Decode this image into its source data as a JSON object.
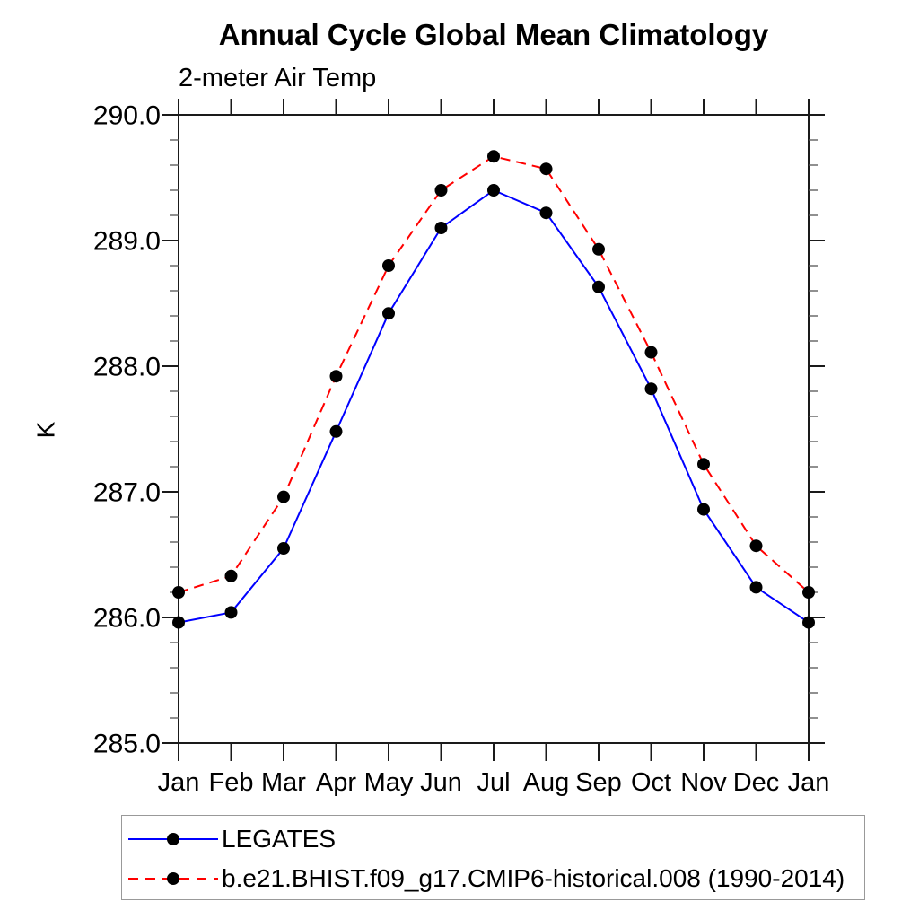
{
  "chart_data": {
    "type": "line",
    "title": "Annual Cycle Global Mean Climatology",
    "subtitle": "2-meter Air Temp",
    "ylabel": "K",
    "categories": [
      "Jan",
      "Feb",
      "Mar",
      "Apr",
      "May",
      "Jun",
      "Jul",
      "Aug",
      "Sep",
      "Oct",
      "Nov",
      "Dec",
      "Jan"
    ],
    "ylim": [
      285.0,
      290.0
    ],
    "y_major_ticks": [
      "285.0",
      "286.0",
      "287.0",
      "288.0",
      "289.0",
      "290.0"
    ],
    "y_minor_step": 0.2,
    "grid": false,
    "legend_position": "bottom-left-box",
    "axis_color": "#1a1a1a",
    "marker_color": "#000000",
    "series": [
      {
        "name": "LEGATES",
        "color": "#0000ff",
        "style": "solid",
        "marker": "circle",
        "values": [
          285.96,
          286.04,
          286.55,
          287.48,
          288.42,
          289.1,
          289.4,
          289.22,
          288.63,
          287.82,
          286.86,
          286.24,
          285.96
        ]
      },
      {
        "name": "b.e21.BHIST.f09_g17.CMIP6-historical.008 (1990-2014)",
        "color": "#ff0000",
        "style": "dashed",
        "marker": "circle",
        "values": [
          286.2,
          286.33,
          286.96,
          287.92,
          288.8,
          289.4,
          289.67,
          289.57,
          288.93,
          288.11,
          287.22,
          286.57,
          286.2
        ]
      }
    ]
  }
}
